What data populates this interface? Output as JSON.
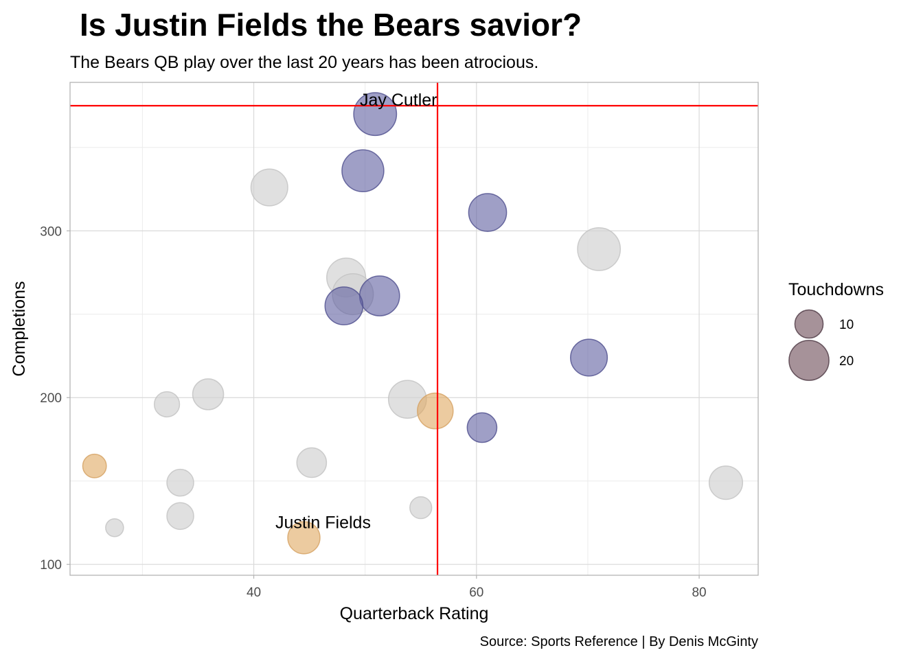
{
  "chart_data": {
    "type": "scatter",
    "title": "Is Justin Fields the Bears savior?",
    "subtitle": "The Bears QB play over the last 20 years has been atrocious.",
    "xlabel": "Quarterback Rating",
    "ylabel": "Completions",
    "caption": "Source: Sports Reference | By Denis McGinty",
    "xlim": [
      23.5,
      85.3
    ],
    "ylim": [
      93.5,
      389
    ],
    "x_ticks": [
      40,
      60,
      80
    ],
    "y_ticks": [
      100,
      200,
      300
    ],
    "grid": true,
    "legend": {
      "title": "Touchdowns",
      "position": "right",
      "entries": [
        {
          "label": "10",
          "value": 10
        },
        {
          "label": "20",
          "value": 20
        }
      ]
    },
    "colors": {
      "other": "#d3d3d3",
      "cutler": "#5f5fa0",
      "fields": "#e0a860",
      "legend": "#6b4a55",
      "reference_lines": "#ff0000"
    },
    "reference_lines": {
      "x": 56.5,
      "y": 375
    },
    "points": [
      {
        "x": 50.9,
        "y": 370,
        "td": 23,
        "group": "cutler"
      },
      {
        "x": 49.8,
        "y": 336,
        "td": 22,
        "group": "cutler"
      },
      {
        "x": 61.0,
        "y": 311,
        "td": 18,
        "group": "cutler"
      },
      {
        "x": 51.3,
        "y": 261,
        "td": 20,
        "group": "cutler"
      },
      {
        "x": 48.1,
        "y": 255,
        "td": 18,
        "group": "cutler"
      },
      {
        "x": 70.1,
        "y": 224,
        "td": 17,
        "group": "cutler"
      },
      {
        "x": 60.5,
        "y": 182,
        "td": 11,
        "group": "cutler"
      },
      {
        "x": 41.4,
        "y": 326,
        "td": 17,
        "group": "other"
      },
      {
        "x": 71.0,
        "y": 289,
        "td": 23,
        "group": "other"
      },
      {
        "x": 48.3,
        "y": 272,
        "td": 19,
        "group": "other"
      },
      {
        "x": 48.9,
        "y": 262,
        "td": 21,
        "group": "other"
      },
      {
        "x": 53.8,
        "y": 199,
        "td": 18,
        "group": "other"
      },
      {
        "x": 35.9,
        "y": 202,
        "td": 12,
        "group": "other"
      },
      {
        "x": 32.2,
        "y": 196,
        "td": 8,
        "group": "other"
      },
      {
        "x": 45.2,
        "y": 161,
        "td": 11,
        "group": "other"
      },
      {
        "x": 33.4,
        "y": 149,
        "td": 9,
        "group": "other"
      },
      {
        "x": 33.4,
        "y": 129,
        "td": 9,
        "group": "other"
      },
      {
        "x": 55.0,
        "y": 134,
        "td": 6,
        "group": "other"
      },
      {
        "x": 27.5,
        "y": 122,
        "td": 4,
        "group": "other"
      },
      {
        "x": 82.4,
        "y": 149,
        "td": 14,
        "group": "other"
      },
      {
        "x": 56.3,
        "y": 192,
        "td": 16,
        "group": "fields"
      },
      {
        "x": 25.7,
        "y": 159,
        "td": 7,
        "group": "fields"
      },
      {
        "x": 44.5,
        "y": 116,
        "td": 13,
        "group": "fields"
      }
    ],
    "annotations": [
      {
        "label": "Jay Cutler",
        "x": 50.9,
        "y": 370
      },
      {
        "label": "Justin Fields",
        "x": 44.5,
        "y": 116
      }
    ]
  }
}
